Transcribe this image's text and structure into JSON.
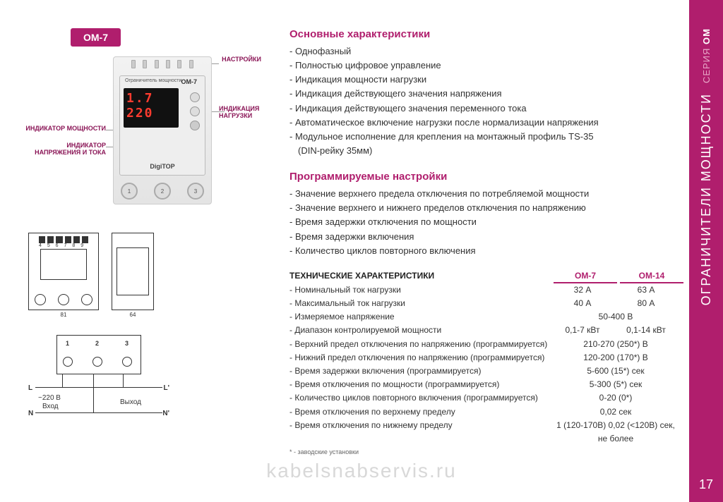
{
  "colors": {
    "brand": "#b01e6d",
    "seg_red": "#ff3b2f"
  },
  "sideTab": {
    "seriesPrefix": "СЕРИЯ",
    "seriesName": "OM",
    "category": "ОГРАНИЧИТЕЛИ МОЩНОСТИ"
  },
  "pageNumber": "17",
  "watermark": "kabelsnabservis.ru",
  "badge": "OM-7",
  "device": {
    "labelTop": "Ограничитель мощности",
    "model": "OM-7",
    "display1": " 1.7",
    "display2": "220",
    "brand": "DigiTOP",
    "terminals": [
      "1",
      "2",
      "3"
    ],
    "topNums": "4 5 6 7 8 9"
  },
  "callouts": {
    "settings": "НАСТРОЙКИ",
    "loadIndication": "ИНДИКАЦИЯ НАГРУЗКИ",
    "powerIndicator": "ИНДИКАТОР МОЩНОСТИ",
    "voltCurrIndicator": "ИНДИКАТОР НАПРЯЖЕНИЯ И ТОКА"
  },
  "diagrams": {
    "frontWidth": "81",
    "sideWidth": "64",
    "topNums": "4 5 6 7 8 9"
  },
  "wiring": {
    "t1": "1",
    "t2": "2",
    "t3": "3",
    "L": "L",
    "Lp": "L'",
    "N": "N",
    "Np": "N'",
    "vin": "~220 В",
    "inLabel": "Вход",
    "outLabel": "Выход"
  },
  "sections": {
    "main": {
      "title": "Основные характеристики",
      "items": [
        "Однофазный",
        "Полностью цифровое управление",
        "Индикация мощности нагрузки",
        "Индикация действующего значения напряжения",
        "Индикация действующего значения переменного тока",
        "Автоматическое включение нагрузки после нормализации напряжения",
        "Модульное исполнение для крепления на монтажный профиль TS-35"
      ],
      "itemsIndent": "(DIN-рейку 35мм)"
    },
    "prog": {
      "title": "Программируемые настройки",
      "items": [
        "Значение верхнего предела отключения по потребляемой мощности",
        "Значение верхнего и нижнего пределов отключения по напряжению",
        "Время задержки отключения по мощности",
        "Время задержки включения",
        "Количество циклов повторного включения"
      ]
    }
  },
  "spec": {
    "title": "ТЕХНИЧЕСКИЕ ХАРАКТЕРИСТИКИ",
    "colA": "OM-7",
    "colB": "OM-14",
    "rows": [
      {
        "label": "Номинальный ток нагрузки",
        "a": "32 А",
        "b": "63 А"
      },
      {
        "label": "Максимальный ток нагрузки",
        "a": "40 А",
        "b": "80 А"
      },
      {
        "label": "Измеряемое напряжение",
        "span": "50-400 В"
      },
      {
        "label": "Диапазон контролируемой мощности",
        "a": "0,1-7 кВт",
        "b": "0,1-14 кВт"
      },
      {
        "label": "Верхний предел отключения по напряжению (программируется)",
        "span": "210-270 (250*) В"
      },
      {
        "label": "Нижний предел отключения по напряжению (программируется)",
        "span": "120-200 (170*) В"
      },
      {
        "label": "Время задержки включения (программируется)",
        "span": "5-600 (15*) сек"
      },
      {
        "label": "Время отключения по мощности (программируется)",
        "span": "5-300 (5*) сек"
      },
      {
        "label": "Количество циклов повторного включения (программируется)",
        "span": "0-20 (0*)"
      },
      {
        "label": "Время отключения по верхнему пределу",
        "span": "0,02 сек"
      },
      {
        "label": "Время отключения по нижнему пределу",
        "span": "1 (120-170В) 0,02 (<120В) сек, не более"
      }
    ],
    "footnote": "* - заводские установки"
  }
}
